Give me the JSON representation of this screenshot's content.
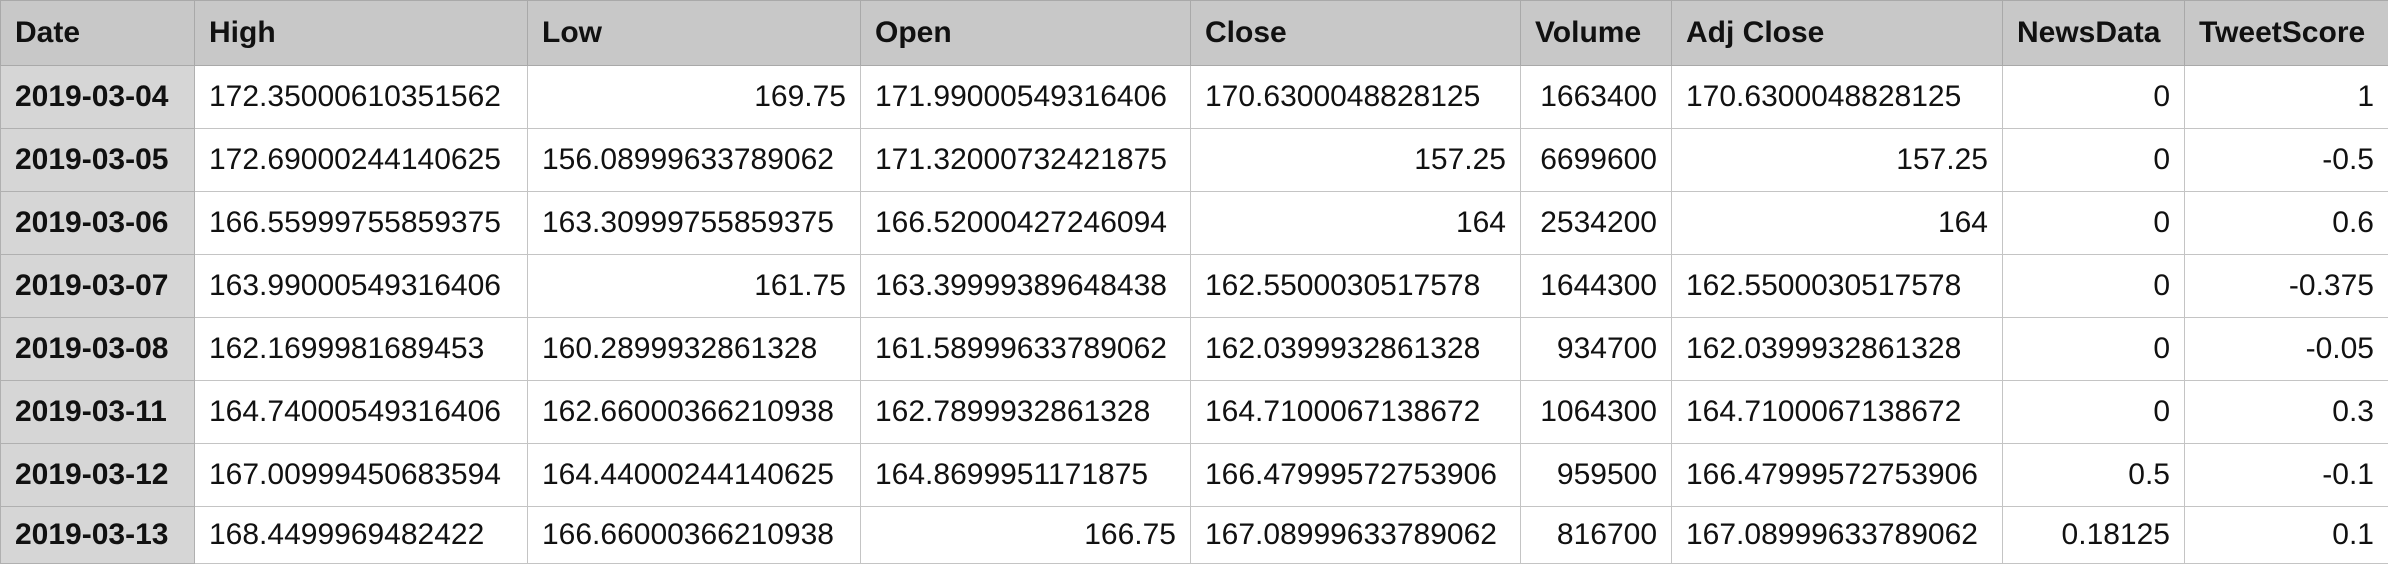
{
  "table": {
    "columns": [
      "Date",
      "High",
      "Low",
      "Open",
      "Close",
      "Volume",
      "Adj Close",
      "NewsData",
      "TweetScore"
    ],
    "rows": [
      [
        "2019-03-04",
        "172.35000610351562",
        "169.75",
        "171.99000549316406",
        "170.6300048828125",
        "1663400",
        "170.6300048828125",
        "0",
        "1"
      ],
      [
        "2019-03-05",
        "172.69000244140625",
        "156.08999633789062",
        "171.32000732421875",
        "157.25",
        "6699600",
        "157.25",
        "0",
        "-0.5"
      ],
      [
        "2019-03-06",
        "166.55999755859375",
        "163.30999755859375",
        "166.52000427246094",
        "164",
        "2534200",
        "164",
        "0",
        "0.6"
      ],
      [
        "2019-03-07",
        "163.99000549316406",
        "161.75",
        "163.39999389648438",
        "162.5500030517578",
        "1644300",
        "162.5500030517578",
        "0",
        "-0.375"
      ],
      [
        "2019-03-08",
        "162.1699981689453",
        "160.2899932861328",
        "161.58999633789062",
        "162.0399932861328",
        "934700",
        "162.0399932861328",
        "0",
        "-0.05"
      ],
      [
        "2019-03-11",
        "164.74000549316406",
        "162.66000366210938",
        "162.7899932861328",
        "164.7100067138672",
        "1064300",
        "164.7100067138672",
        "0",
        "0.3"
      ],
      [
        "2019-03-12",
        "167.00999450683594",
        "164.44000244140625",
        "164.8699951171875",
        "166.47999572753906",
        "959500",
        "166.47999572753906",
        "0.5",
        "-0.1"
      ],
      [
        "2019-03-13",
        "168.4499969482422",
        "166.66000366210938",
        "166.75",
        "167.08999633789062",
        "816700",
        "167.08999633789062",
        "0.18125",
        "0.1"
      ]
    ]
  }
}
